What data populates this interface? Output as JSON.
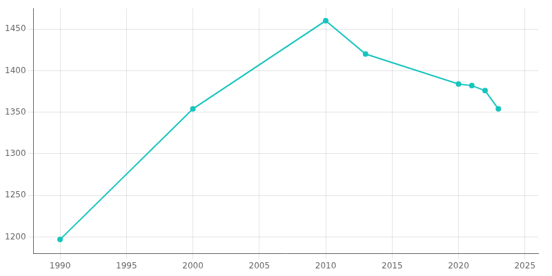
{
  "chart_data": {
    "type": "line",
    "x": [
      1990,
      2000,
      2010,
      2013,
      2020,
      2021,
      2022,
      2023
    ],
    "values": [
      1197,
      1354,
      1460,
      1420,
      1384,
      1382,
      1376,
      1354
    ],
    "color": "#17c4be",
    "marker": "circle",
    "xlim": [
      1988,
      2026
    ],
    "ylim": [
      1180,
      1475
    ],
    "xticks": [
      1990,
      1995,
      2000,
      2005,
      2010,
      2015,
      2020,
      2025
    ],
    "yticks": [
      1200,
      1250,
      1300,
      1350,
      1400,
      1450
    ],
    "grid": true
  }
}
